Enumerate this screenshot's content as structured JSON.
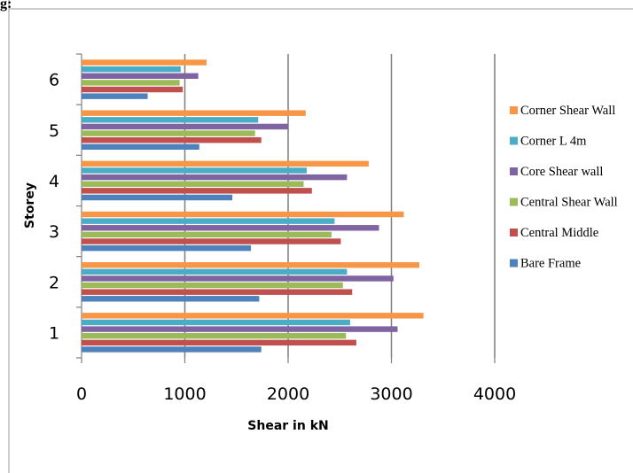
{
  "page_fragment": "g:",
  "chart_data": {
    "type": "bar",
    "orientation": "horizontal",
    "categories": [
      "1",
      "2",
      "3",
      "4",
      "5",
      "6"
    ],
    "xlabel": "Shear in kN",
    "ylabel": "Storey",
    "xlim": [
      0,
      4000
    ],
    "xticks": [
      "0",
      "1000",
      "2000",
      "3000",
      "4000"
    ],
    "grid": "vertical major gridlines",
    "legend_position": "right",
    "series": [
      {
        "name": "Bare Frame",
        "color": "#4f81bd",
        "values": [
          1740,
          1720,
          1640,
          1460,
          1140,
          640
        ]
      },
      {
        "name": "Central Middle",
        "color": "#c0504d",
        "values": [
          2660,
          2620,
          2510,
          2230,
          1740,
          980
        ]
      },
      {
        "name": "Central Shear Wall",
        "color": "#9bbb59",
        "values": [
          2560,
          2530,
          2420,
          2150,
          1680,
          950
        ]
      },
      {
        "name": "Core Shear wall",
        "color": "#8064a2",
        "values": [
          3060,
          3020,
          2880,
          2570,
          2000,
          1130
        ]
      },
      {
        "name": "Corner L 4m",
        "color": "#4bacc6",
        "values": [
          2600,
          2570,
          2450,
          2180,
          1710,
          960
        ]
      },
      {
        "name": "Corner Shear Wall",
        "color": "#f79646",
        "values": [
          3310,
          3270,
          3120,
          2780,
          2170,
          1210
        ]
      }
    ],
    "legend": [
      "Corner Shear Wall",
      "Corner L 4m",
      "Core Shear wall",
      "Central Shear Wall",
      "Central Middle",
      "Bare Frame"
    ]
  }
}
